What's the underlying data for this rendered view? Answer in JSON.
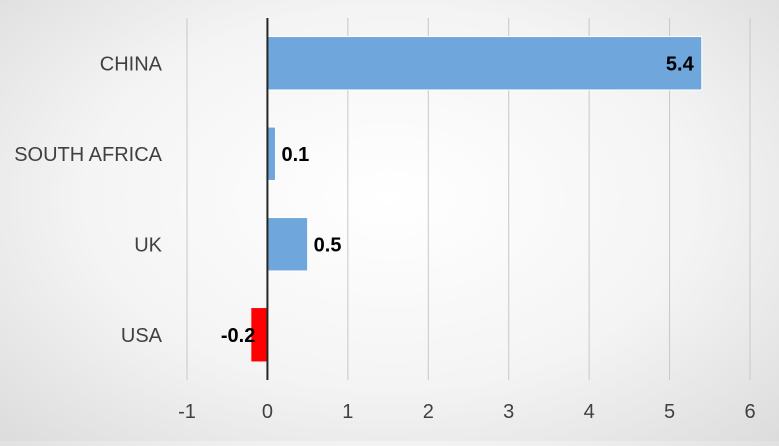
{
  "chart_data": {
    "type": "bar",
    "orientation": "horizontal",
    "categories": [
      "CHINA",
      "SOUTH AFRICA",
      "UK",
      "USA"
    ],
    "values": [
      5.4,
      0.1,
      0.5,
      -0.2
    ],
    "data_labels": [
      "5.4",
      "0.1",
      "0.5",
      "-0.2"
    ],
    "xlim": [
      -1,
      6
    ],
    "xticks": [
      -1,
      0,
      1,
      2,
      3,
      4,
      5,
      6
    ],
    "xtick_labels": [
      "-1",
      "0",
      "1",
      "2",
      "3",
      "4",
      "5",
      "6"
    ],
    "grid": true,
    "legend": "none",
    "colors": {
      "positive": "#6fa6dc",
      "negative": "#ff0000",
      "grid": "#c8c8c8",
      "axis": "#262626"
    }
  }
}
